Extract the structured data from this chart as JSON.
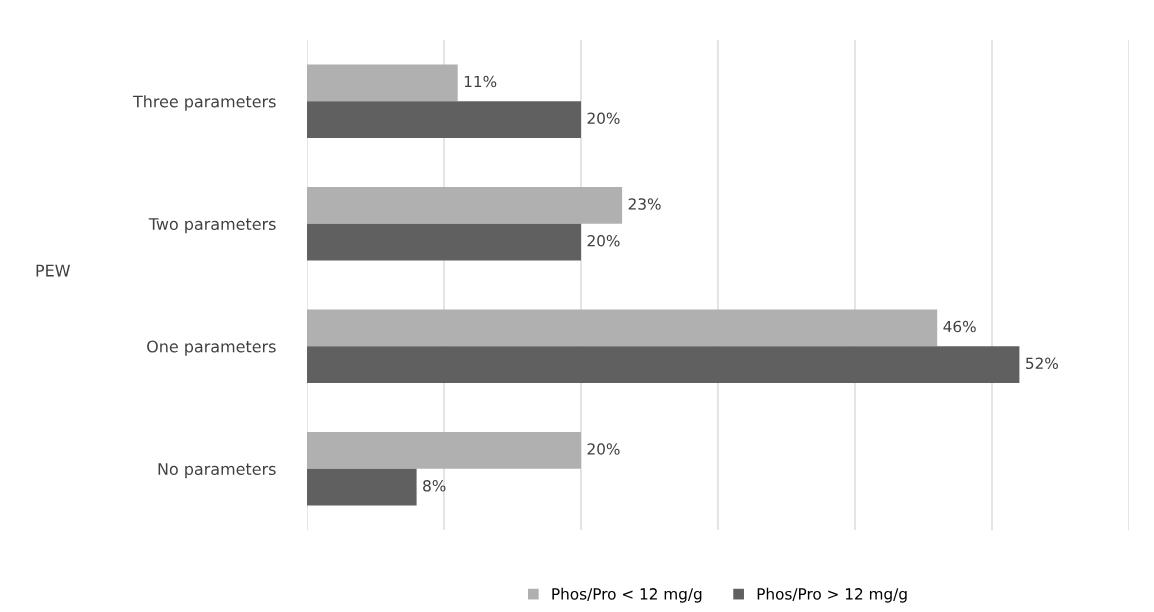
{
  "chart_data": {
    "type": "bar",
    "orientation": "horizontal",
    "ylabel": "PEW",
    "categories": [
      "Three parameters",
      "Two parameters",
      "One parameters",
      "No parameters"
    ],
    "series": [
      {
        "name": "Phos/Pro < 12 mg/g",
        "color": "#b0b0b0",
        "values": [
          11,
          23,
          46,
          20
        ],
        "value_labels": [
          "11%",
          "23%",
          "46%",
          "20%"
        ]
      },
      {
        "name": "Phos/Pro > 12 mg/g",
        "color": "#606060",
        "values": [
          20,
          20,
          52,
          8
        ],
        "value_labels": [
          "20%",
          "20%",
          "52%",
          "8%"
        ]
      }
    ],
    "xlim": [
      0,
      60
    ],
    "xticks": [
      {
        "value": 0,
        "label": null
      },
      {
        "value": 10,
        "label": null
      },
      {
        "value": 20,
        "label": null
      },
      {
        "value": 30,
        "label": null
      },
      {
        "value": 40,
        "label": null
      },
      {
        "value": 50,
        "label": null
      },
      {
        "value": 60,
        "label": null
      }
    ],
    "tick_labels": "y",
    "grid": "x",
    "legend": "bottom"
  }
}
